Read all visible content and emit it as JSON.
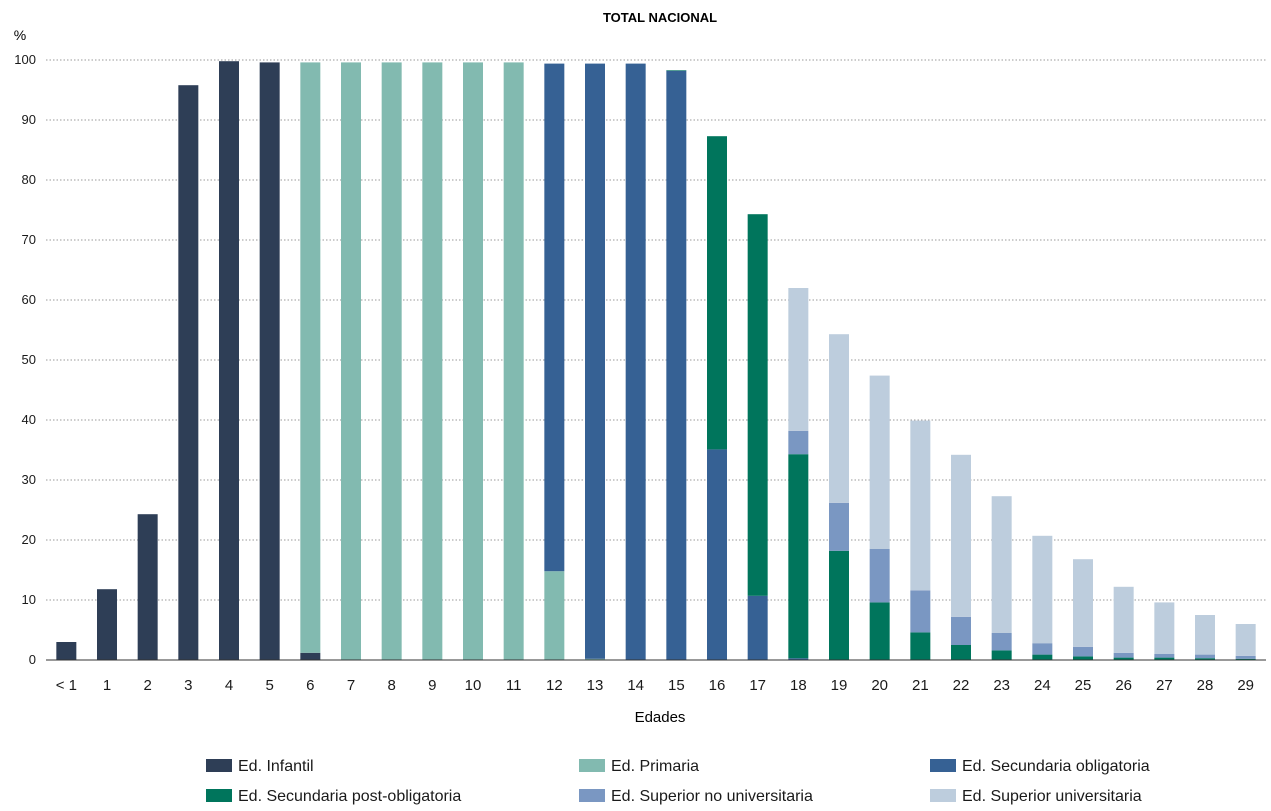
{
  "chart_data": {
    "type": "bar",
    "stacked": true,
    "title": "TOTAL NACIONAL",
    "ylabel": "%",
    "xlabel": "Edades",
    "ylim": [
      0,
      100
    ],
    "yticks": [
      0,
      10,
      20,
      30,
      40,
      50,
      60,
      70,
      80,
      90,
      100
    ],
    "grid": true,
    "legend_position": "bottom",
    "categories": [
      "< 1",
      "1",
      "2",
      "3",
      "4",
      "5",
      "6",
      "7",
      "8",
      "9",
      "10",
      "11",
      "12",
      "13",
      "14",
      "15",
      "16",
      "17",
      "18",
      "19",
      "20",
      "21",
      "22",
      "23",
      "24",
      "25",
      "26",
      "27",
      "28",
      "29"
    ],
    "series": [
      {
        "name": "Ed. Infantil",
        "color": "#2e3e56",
        "values": [
          3.0,
          11.8,
          24.3,
          95.8,
          99.8,
          99.6,
          1.2,
          0,
          0,
          0,
          0,
          0,
          0,
          0,
          0,
          0,
          0,
          0,
          0,
          0,
          0,
          0,
          0,
          0,
          0,
          0,
          0,
          0,
          0,
          0
        ]
      },
      {
        "name": "Ed. Primaria",
        "color": "#82bab0",
        "values": [
          0,
          0,
          0,
          0,
          0,
          0,
          98.4,
          99.6,
          99.6,
          99.6,
          99.6,
          99.6,
          14.8,
          0.2,
          0,
          0,
          0,
          0,
          0,
          0,
          0,
          0,
          0,
          0,
          0,
          0,
          0,
          0,
          0,
          0
        ]
      },
      {
        "name": "Ed. Secundaria obligatoria",
        "color": "#366194",
        "values": [
          0,
          0,
          0,
          0,
          0,
          0,
          0,
          0,
          0,
          0,
          0,
          0,
          84.6,
          99.2,
          99.4,
          98.2,
          35.1,
          10.7,
          0.3,
          0,
          0,
          0,
          0,
          0,
          0,
          0,
          0,
          0,
          0,
          0
        ]
      },
      {
        "name": "Ed. Secundaria post-obligatoria",
        "color": "#00755c",
        "values": [
          0,
          0,
          0,
          0,
          0,
          0,
          0,
          0,
          0,
          0,
          0,
          0,
          0,
          0,
          0,
          0.1,
          52.2,
          63.6,
          34.0,
          18.2,
          9.6,
          4.6,
          2.5,
          1.6,
          0.9,
          0.6,
          0.4,
          0.4,
          0.3,
          0.2
        ]
      },
      {
        "name": "Ed. Superior no universitaria",
        "color": "#7a97c2",
        "values": [
          0,
          0,
          0,
          0,
          0,
          0,
          0,
          0,
          0,
          0,
          0,
          0,
          0,
          0,
          0,
          0,
          0,
          0,
          3.9,
          8.0,
          8.9,
          7.0,
          4.7,
          2.9,
          1.9,
          1.6,
          0.8,
          0.6,
          0.6,
          0.5
        ]
      },
      {
        "name": "Ed. Superior universitaria",
        "color": "#bdcddd",
        "values": [
          0,
          0,
          0,
          0,
          0,
          0,
          0,
          0,
          0,
          0,
          0,
          0,
          0,
          0,
          0,
          0,
          0,
          0,
          23.8,
          28.1,
          28.9,
          28.3,
          27.0,
          22.8,
          17.9,
          14.6,
          11.0,
          8.6,
          6.6,
          5.3
        ]
      }
    ]
  }
}
